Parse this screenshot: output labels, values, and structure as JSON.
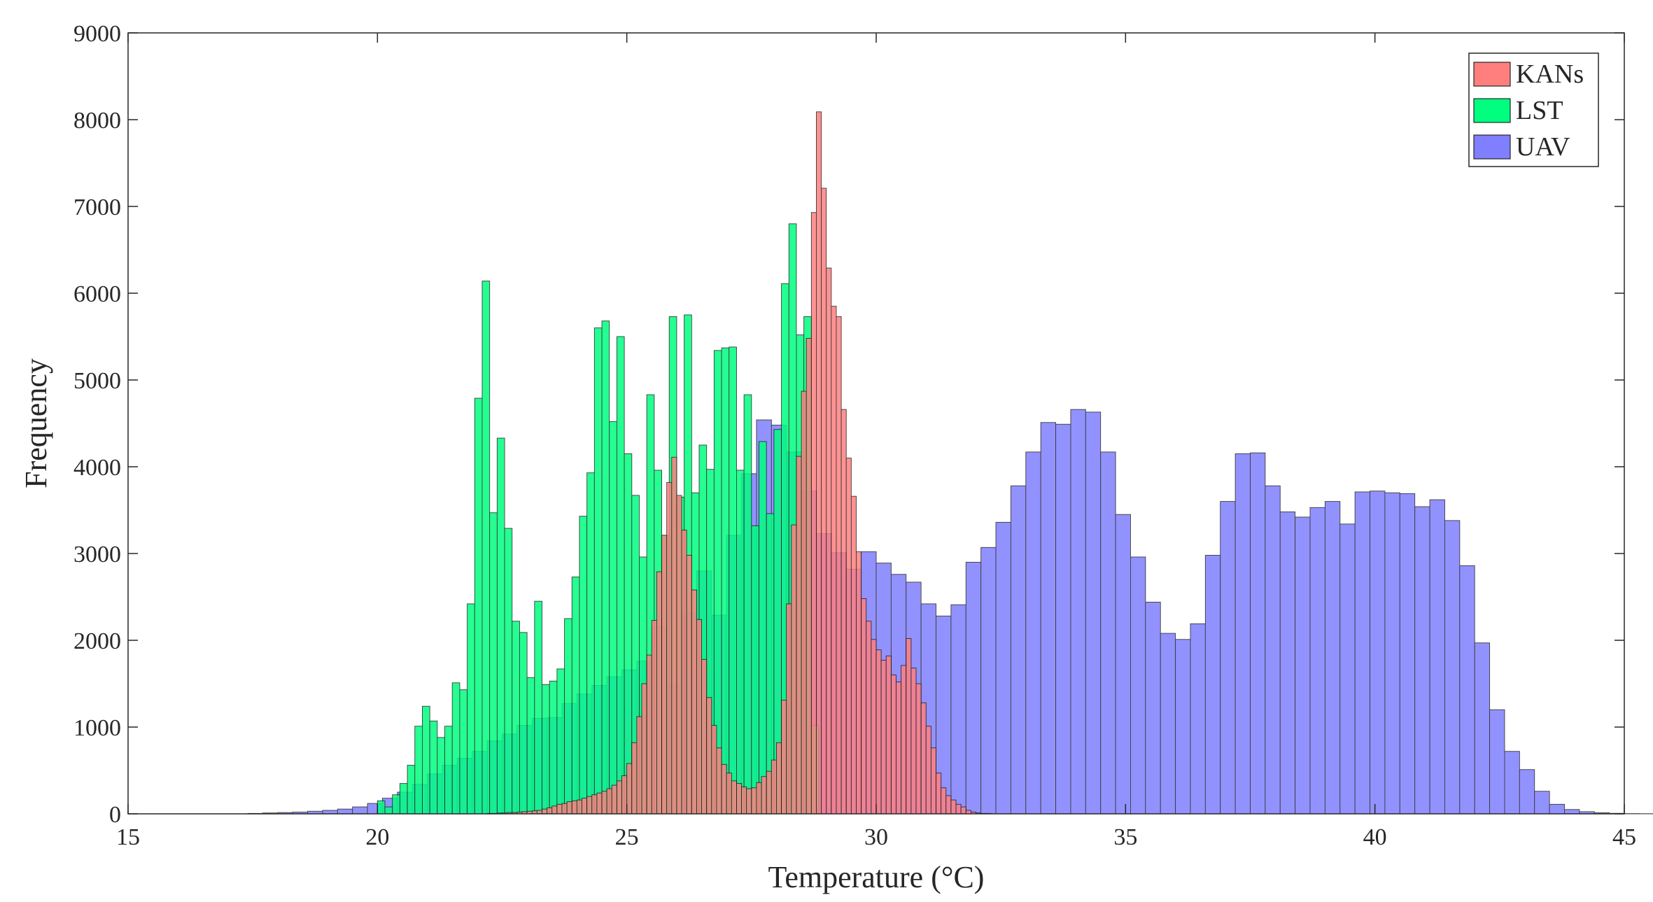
{
  "chart_data": {
    "type": "bar",
    "title": "",
    "xlabel": "Temperature (°C)",
    "ylabel": "Frequency",
    "xlim": [
      15,
      45
    ],
    "ylim": [
      0,
      9000
    ],
    "xticks": [
      15,
      20,
      25,
      30,
      35,
      40,
      45
    ],
    "yticks": [
      0,
      1000,
      2000,
      3000,
      4000,
      5000,
      6000,
      7000,
      8000,
      9000
    ],
    "xtick_labels": [
      "15",
      "20",
      "25",
      "30",
      "35",
      "40",
      "45"
    ],
    "ytick_labels": [
      "0",
      "1000",
      "2000",
      "3000",
      "4000",
      "5000",
      "6000",
      "7000",
      "8000",
      "9000"
    ],
    "grid": false,
    "legend_position": "top-right",
    "series": [
      {
        "name": "UAV",
        "color": "#7f7fff",
        "bin_start": 17.4,
        "bin_width": 0.3,
        "values": [
          5,
          10,
          15,
          20,
          30,
          40,
          55,
          80,
          120,
          180,
          250,
          340,
          460,
          560,
          640,
          720,
          840,
          920,
          1020,
          1100,
          1110,
          1270,
          1380,
          1480,
          1580,
          1660,
          1760,
          2160,
          1480,
          2320,
          2800,
          2290,
          3210,
          3920,
          4540,
          4480,
          4170,
          3720,
          3230,
          3010,
          2820,
          3020,
          2890,
          2760,
          2670,
          2420,
          2280,
          2410,
          2900,
          3070,
          3360,
          3780,
          4170,
          4510,
          4490,
          4660,
          4630,
          4170,
          3450,
          2960,
          2440,
          2080,
          2010,
          2190,
          2980,
          3600,
          4150,
          4160,
          3780,
          3480,
          3420,
          3530,
          3600,
          3340,
          3710,
          3720,
          3700,
          3690,
          3540,
          3620,
          3380,
          2860,
          1970,
          1200,
          720,
          510,
          260,
          110,
          50,
          25,
          12,
          6,
          3,
          2,
          1,
          0
        ]
      },
      {
        "name": "LST",
        "color": "#00ff7f",
        "bin_start": 20.0,
        "bin_width": 0.15,
        "values": [
          150,
          80,
          220,
          350,
          560,
          1010,
          1240,
          1070,
          880,
          1010,
          1510,
          1430,
          2420,
          4790,
          6140,
          3470,
          4330,
          3290,
          2220,
          2090,
          1570,
          2450,
          1490,
          1530,
          1670,
          2250,
          2730,
          3430,
          3930,
          5600,
          5680,
          4520,
          5500,
          4150,
          3670,
          2960,
          4830,
          3960,
          3210,
          5730,
          3650,
          5750,
          3700,
          4250,
          3970,
          5340,
          5370,
          5380,
          3960,
          4830,
          3320,
          4290,
          3460,
          4430,
          6110,
          6800,
          5520,
          5730,
          1020
        ]
      },
      {
        "name": "KANs",
        "color": "#ff7f7f",
        "bin_start": 19.0,
        "bin_width": 0.1,
        "values": [
          0,
          0,
          0,
          0,
          0,
          0,
          0,
          0,
          0,
          0,
          0,
          0,
          0,
          0,
          0,
          0,
          0,
          0,
          0,
          0,
          0,
          0,
          0,
          0,
          0,
          0,
          0,
          0,
          0,
          0,
          0,
          0,
          5,
          5,
          10,
          10,
          15,
          15,
          20,
          25,
          30,
          35,
          40,
          55,
          70,
          90,
          110,
          120,
          140,
          150,
          160,
          180,
          200,
          220,
          240,
          260,
          290,
          330,
          380,
          440,
          580,
          820,
          1120,
          1500,
          1830,
          2230,
          2790,
          3210,
          3820,
          4110,
          3670,
          3270,
          2980,
          2580,
          2240,
          1780,
          1340,
          1020,
          760,
          570,
          470,
          380,
          350,
          310,
          290,
          300,
          360,
          430,
          490,
          620,
          820,
          1310,
          2420,
          3330,
          4120,
          4870,
          5480,
          6930,
          8090,
          7210,
          6290,
          5850,
          5730,
          4660,
          4100,
          3660,
          3020,
          2480,
          2220,
          2010,
          1890,
          1770,
          1820,
          1600,
          1520,
          1710,
          2020,
          1680,
          1500,
          1280,
          1010,
          760,
          470,
          300,
          210,
          160,
          110,
          80,
          40,
          20,
          10,
          5,
          5
        ]
      }
    ],
    "legend": [
      "KANs",
      "LST",
      "UAV"
    ]
  }
}
